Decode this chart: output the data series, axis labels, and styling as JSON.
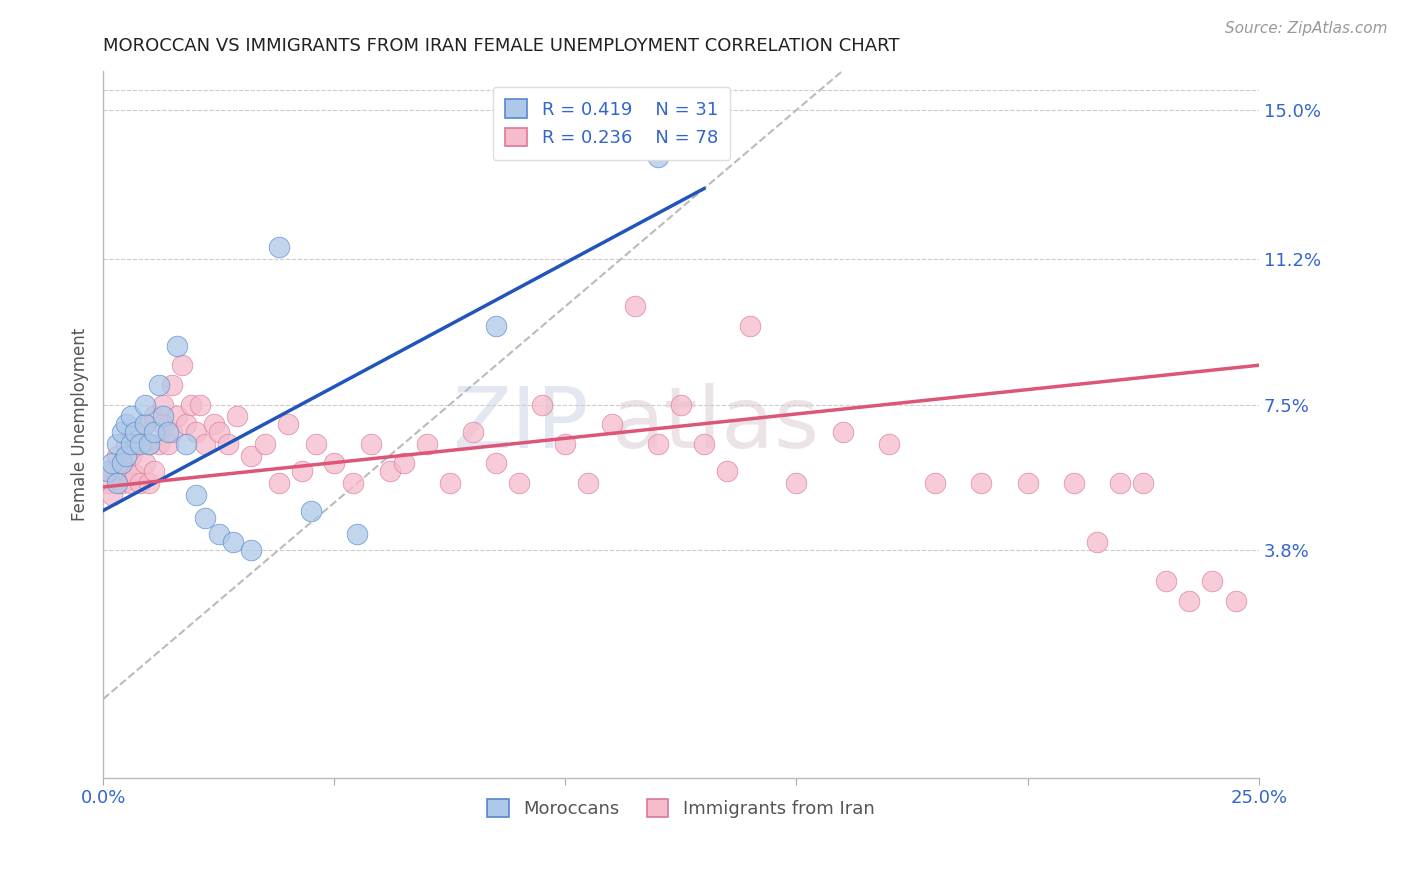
{
  "title": "MOROCCAN VS IMMIGRANTS FROM IRAN FEMALE UNEMPLOYMENT CORRELATION CHART",
  "source": "Source: ZipAtlas.com",
  "ylabel": "Female Unemployment",
  "x_min": 0.0,
  "x_max": 0.25,
  "y_min": -0.02,
  "y_max": 0.16,
  "y_tick_labels_right": [
    "15.0%",
    "11.2%",
    "7.5%",
    "3.8%"
  ],
  "y_tick_vals_right": [
    0.15,
    0.112,
    0.075,
    0.038
  ],
  "legend_r1": "R = 0.419",
  "legend_n1": "N = 31",
  "legend_r2": "R = 0.236",
  "legend_n2": "N = 78",
  "color_moroccan_fill": "#adc8e8",
  "color_moroccan_edge": "#5588cc",
  "color_iran_fill": "#f5bccb",
  "color_iran_edge": "#dd7799",
  "color_moroccan_line": "#2255bb",
  "color_iran_line": "#dd5577",
  "color_diagonal": "#bbbbbb",
  "watermark_zip": "ZIP",
  "watermark_atlas": "atlas",
  "moroccan_x": [
    0.001,
    0.002,
    0.003,
    0.003,
    0.004,
    0.004,
    0.005,
    0.005,
    0.006,
    0.006,
    0.007,
    0.008,
    0.009,
    0.009,
    0.01,
    0.011,
    0.012,
    0.013,
    0.014,
    0.016,
    0.018,
    0.02,
    0.022,
    0.025,
    0.028,
    0.032,
    0.038,
    0.045,
    0.055,
    0.085,
    0.12
  ],
  "moroccan_y": [
    0.058,
    0.06,
    0.055,
    0.065,
    0.06,
    0.068,
    0.062,
    0.07,
    0.065,
    0.072,
    0.068,
    0.065,
    0.07,
    0.075,
    0.065,
    0.068,
    0.08,
    0.072,
    0.068,
    0.09,
    0.065,
    0.052,
    0.046,
    0.042,
    0.04,
    0.038,
    0.115,
    0.048,
    0.042,
    0.095,
    0.138
  ],
  "iran_x": [
    0.001,
    0.002,
    0.002,
    0.003,
    0.003,
    0.004,
    0.004,
    0.005,
    0.005,
    0.006,
    0.006,
    0.007,
    0.007,
    0.008,
    0.008,
    0.009,
    0.009,
    0.01,
    0.01,
    0.011,
    0.011,
    0.012,
    0.013,
    0.013,
    0.014,
    0.015,
    0.015,
    0.016,
    0.017,
    0.018,
    0.019,
    0.02,
    0.021,
    0.022,
    0.024,
    0.025,
    0.027,
    0.029,
    0.032,
    0.035,
    0.038,
    0.04,
    0.043,
    0.046,
    0.05,
    0.054,
    0.058,
    0.062,
    0.065,
    0.07,
    0.075,
    0.08,
    0.085,
    0.09,
    0.095,
    0.1,
    0.105,
    0.11,
    0.115,
    0.12,
    0.125,
    0.13,
    0.135,
    0.14,
    0.15,
    0.16,
    0.17,
    0.18,
    0.19,
    0.2,
    0.21,
    0.215,
    0.22,
    0.225,
    0.23,
    0.235,
    0.24,
    0.245
  ],
  "iran_y": [
    0.055,
    0.052,
    0.058,
    0.056,
    0.062,
    0.055,
    0.06,
    0.058,
    0.065,
    0.055,
    0.062,
    0.057,
    0.065,
    0.055,
    0.068,
    0.06,
    0.07,
    0.055,
    0.065,
    0.058,
    0.072,
    0.065,
    0.07,
    0.075,
    0.065,
    0.08,
    0.068,
    0.072,
    0.085,
    0.07,
    0.075,
    0.068,
    0.075,
    0.065,
    0.07,
    0.068,
    0.065,
    0.072,
    0.062,
    0.065,
    0.055,
    0.07,
    0.058,
    0.065,
    0.06,
    0.055,
    0.065,
    0.058,
    0.06,
    0.065,
    0.055,
    0.068,
    0.06,
    0.055,
    0.075,
    0.065,
    0.055,
    0.07,
    0.1,
    0.065,
    0.075,
    0.065,
    0.058,
    0.095,
    0.055,
    0.068,
    0.065,
    0.055,
    0.055,
    0.055,
    0.055,
    0.04,
    0.055,
    0.055,
    0.03,
    0.025,
    0.03,
    0.025
  ],
  "blue_line_x0": 0.0,
  "blue_line_y0": 0.048,
  "blue_line_x1": 0.13,
  "blue_line_y1": 0.13,
  "pink_line_x0": 0.0,
  "pink_line_y0": 0.054,
  "pink_line_x1": 0.25,
  "pink_line_y1": 0.085
}
